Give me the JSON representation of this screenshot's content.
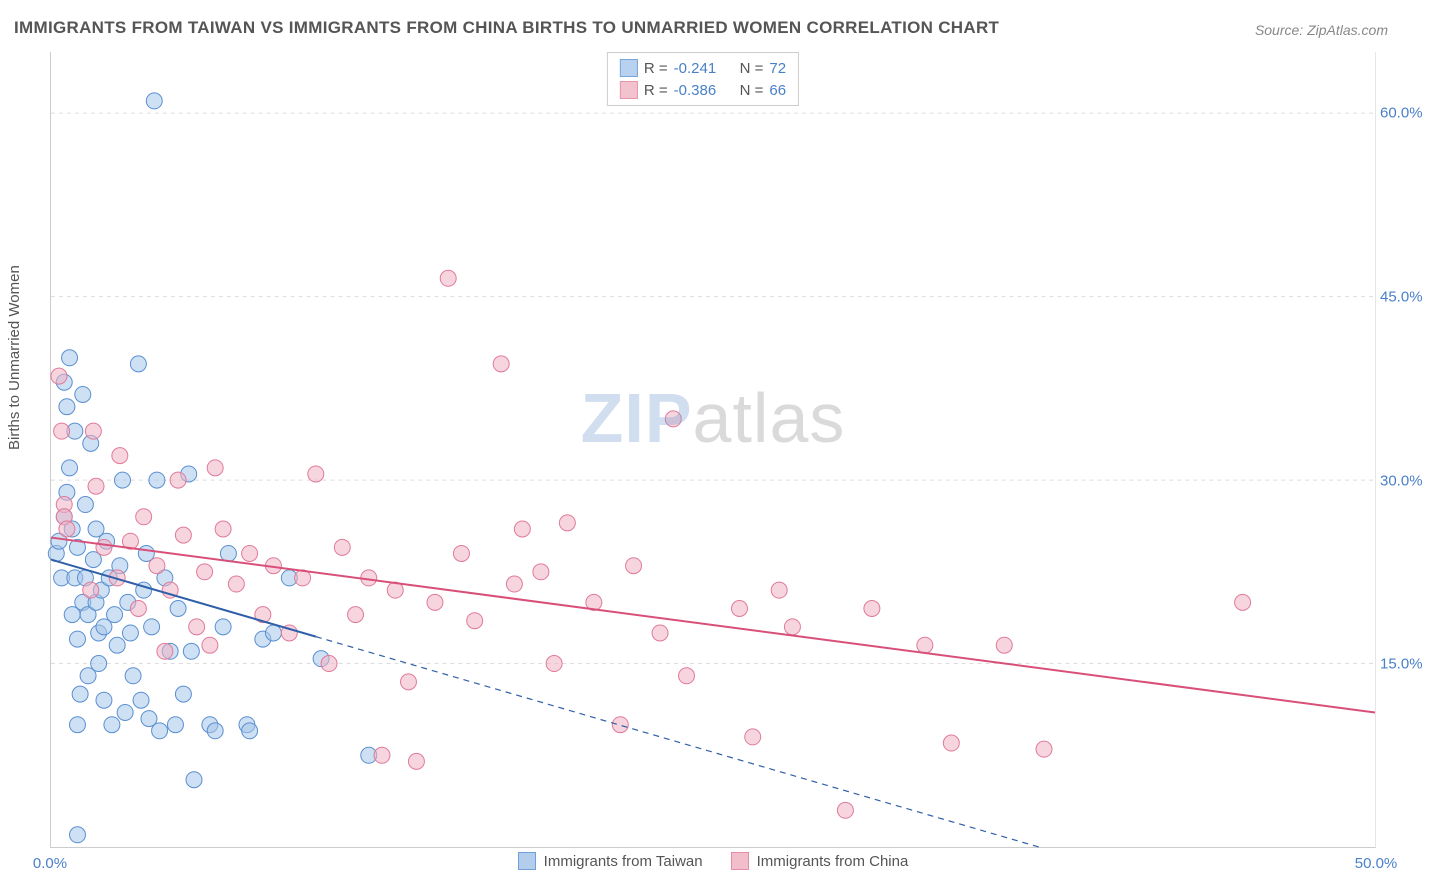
{
  "title": "IMMIGRANTS FROM TAIWAN VS IMMIGRANTS FROM CHINA BIRTHS TO UNMARRIED WOMEN CORRELATION CHART",
  "source": "Source: ZipAtlas.com",
  "y_axis_title": "Births to Unmarried Women",
  "watermark": {
    "part1": "ZIP",
    "part2": "atlas"
  },
  "chart": {
    "type": "scatter",
    "background_color": "#ffffff",
    "grid_color": "#dddddd",
    "axis_color": "#cccccc",
    "label_color": "#4a80c7",
    "text_color": "#555555",
    "title_fontsize": 17,
    "label_fontsize": 15,
    "xlim": [
      0,
      50
    ],
    "ylim": [
      0,
      65
    ],
    "x_ticks": [
      {
        "v": 0,
        "label": "0.0%"
      },
      {
        "v": 50,
        "label": "50.0%"
      }
    ],
    "y_ticks": [
      {
        "v": 15,
        "label": "15.0%"
      },
      {
        "v": 30,
        "label": "30.0%"
      },
      {
        "v": 45,
        "label": "45.0%"
      },
      {
        "v": 60,
        "label": "60.0%"
      }
    ],
    "series": [
      {
        "id": "taiwan",
        "label": "Immigrants from Taiwan",
        "fill": "#a6c6ea",
        "stroke": "#5a8fd0",
        "fill_opacity": 0.55,
        "marker_r": 8,
        "R": "-0.241",
        "N": "72",
        "trend": {
          "y_at_x0": 23.5,
          "y_at_x50": -8.0,
          "solid_until_x": 10.0,
          "color": "#2f5fa8",
          "width": 2
        },
        "points": [
          [
            0.2,
            24
          ],
          [
            0.3,
            25
          ],
          [
            0.4,
            22
          ],
          [
            0.5,
            27
          ],
          [
            0.5,
            38
          ],
          [
            0.6,
            36
          ],
          [
            0.6,
            29
          ],
          [
            0.7,
            40
          ],
          [
            0.7,
            31
          ],
          [
            0.8,
            19
          ],
          [
            0.8,
            26
          ],
          [
            0.9,
            34
          ],
          [
            0.9,
            22
          ],
          [
            1.0,
            1
          ],
          [
            1.0,
            10
          ],
          [
            1.0,
            24.5
          ],
          [
            1.0,
            17
          ],
          [
            1.1,
            12.5
          ],
          [
            1.2,
            20
          ],
          [
            1.2,
            37
          ],
          [
            1.3,
            28
          ],
          [
            1.3,
            22
          ],
          [
            1.4,
            19
          ],
          [
            1.4,
            14
          ],
          [
            1.5,
            33
          ],
          [
            1.6,
            23.5
          ],
          [
            1.7,
            26
          ],
          [
            1.7,
            20
          ],
          [
            1.8,
            17.5
          ],
          [
            1.8,
            15
          ],
          [
            1.9,
            21
          ],
          [
            2.0,
            12
          ],
          [
            2.0,
            18
          ],
          [
            2.1,
            25
          ],
          [
            2.2,
            22
          ],
          [
            2.3,
            10
          ],
          [
            2.4,
            19
          ],
          [
            2.5,
            16.5
          ],
          [
            2.6,
            23
          ],
          [
            2.7,
            30
          ],
          [
            2.8,
            11
          ],
          [
            2.9,
            20
          ],
          [
            3.0,
            17.5
          ],
          [
            3.1,
            14
          ],
          [
            3.3,
            39.5
          ],
          [
            3.4,
            12
          ],
          [
            3.5,
            21
          ],
          [
            3.6,
            24
          ],
          [
            3.7,
            10.5
          ],
          [
            3.8,
            18
          ],
          [
            3.9,
            61
          ],
          [
            4.0,
            30
          ],
          [
            4.1,
            9.5
          ],
          [
            4.3,
            22
          ],
          [
            4.5,
            16
          ],
          [
            4.7,
            10
          ],
          [
            4.8,
            19.5
          ],
          [
            5.0,
            12.5
          ],
          [
            5.2,
            30.5
          ],
          [
            5.3,
            16
          ],
          [
            5.4,
            5.5
          ],
          [
            6.0,
            10
          ],
          [
            6.2,
            9.5
          ],
          [
            6.5,
            18
          ],
          [
            6.7,
            24
          ],
          [
            7.4,
            10
          ],
          [
            7.5,
            9.5
          ],
          [
            8.0,
            17
          ],
          [
            8.4,
            17.5
          ],
          [
            9.0,
            22
          ],
          [
            10.2,
            15.4
          ],
          [
            12.0,
            7.5
          ]
        ]
      },
      {
        "id": "china",
        "label": "Immigrants from China",
        "fill": "#f0b3c4",
        "stroke": "#e07a9a",
        "fill_opacity": 0.55,
        "marker_r": 8,
        "R": "-0.386",
        "N": "66",
        "trend": {
          "y_at_x0": 25.3,
          "y_at_x50": 11.0,
          "solid_until_x": 50.0,
          "color": "#d85079",
          "width": 2
        },
        "points": [
          [
            0.3,
            38.5
          ],
          [
            0.4,
            34
          ],
          [
            0.5,
            28
          ],
          [
            0.5,
            27
          ],
          [
            0.6,
            26
          ],
          [
            1.5,
            21
          ],
          [
            1.6,
            34
          ],
          [
            1.7,
            29.5
          ],
          [
            2.0,
            24.5
          ],
          [
            2.5,
            22
          ],
          [
            2.6,
            32
          ],
          [
            3.0,
            25
          ],
          [
            3.3,
            19.5
          ],
          [
            3.5,
            27
          ],
          [
            4.0,
            23
          ],
          [
            4.3,
            16
          ],
          [
            4.5,
            21
          ],
          [
            4.8,
            30
          ],
          [
            5.0,
            25.5
          ],
          [
            5.5,
            18
          ],
          [
            5.8,
            22.5
          ],
          [
            6.0,
            16.5
          ],
          [
            6.2,
            31
          ],
          [
            6.5,
            26
          ],
          [
            7.0,
            21.5
          ],
          [
            7.5,
            24
          ],
          [
            8.0,
            19
          ],
          [
            8.4,
            23
          ],
          [
            9.0,
            17.5
          ],
          [
            9.5,
            22
          ],
          [
            10.0,
            30.5
          ],
          [
            10.5,
            15
          ],
          [
            11.0,
            24.5
          ],
          [
            11.5,
            19
          ],
          [
            12.0,
            22
          ],
          [
            12.5,
            7.5
          ],
          [
            13.0,
            21
          ],
          [
            13.5,
            13.5
          ],
          [
            13.8,
            7
          ],
          [
            14.5,
            20
          ],
          [
            15.0,
            46.5
          ],
          [
            15.5,
            24
          ],
          [
            16.0,
            18.5
          ],
          [
            17.0,
            39.5
          ],
          [
            17.5,
            21.5
          ],
          [
            17.8,
            26
          ],
          [
            18.5,
            22.5
          ],
          [
            19.0,
            15
          ],
          [
            19.5,
            26.5
          ],
          [
            20.5,
            20
          ],
          [
            21.5,
            10
          ],
          [
            22.0,
            23
          ],
          [
            23.0,
            17.5
          ],
          [
            23.5,
            35
          ],
          [
            24.0,
            14
          ],
          [
            26.0,
            19.5
          ],
          [
            26.5,
            9
          ],
          [
            27.5,
            21
          ],
          [
            28.0,
            18
          ],
          [
            30.0,
            3
          ],
          [
            31.0,
            19.5
          ],
          [
            33.0,
            16.5
          ],
          [
            34.0,
            8.5
          ],
          [
            36.0,
            16.5
          ],
          [
            37.5,
            8
          ],
          [
            45.0,
            20
          ]
        ]
      }
    ]
  },
  "legend_top": {
    "r_label": "R =",
    "n_label": "N ="
  }
}
